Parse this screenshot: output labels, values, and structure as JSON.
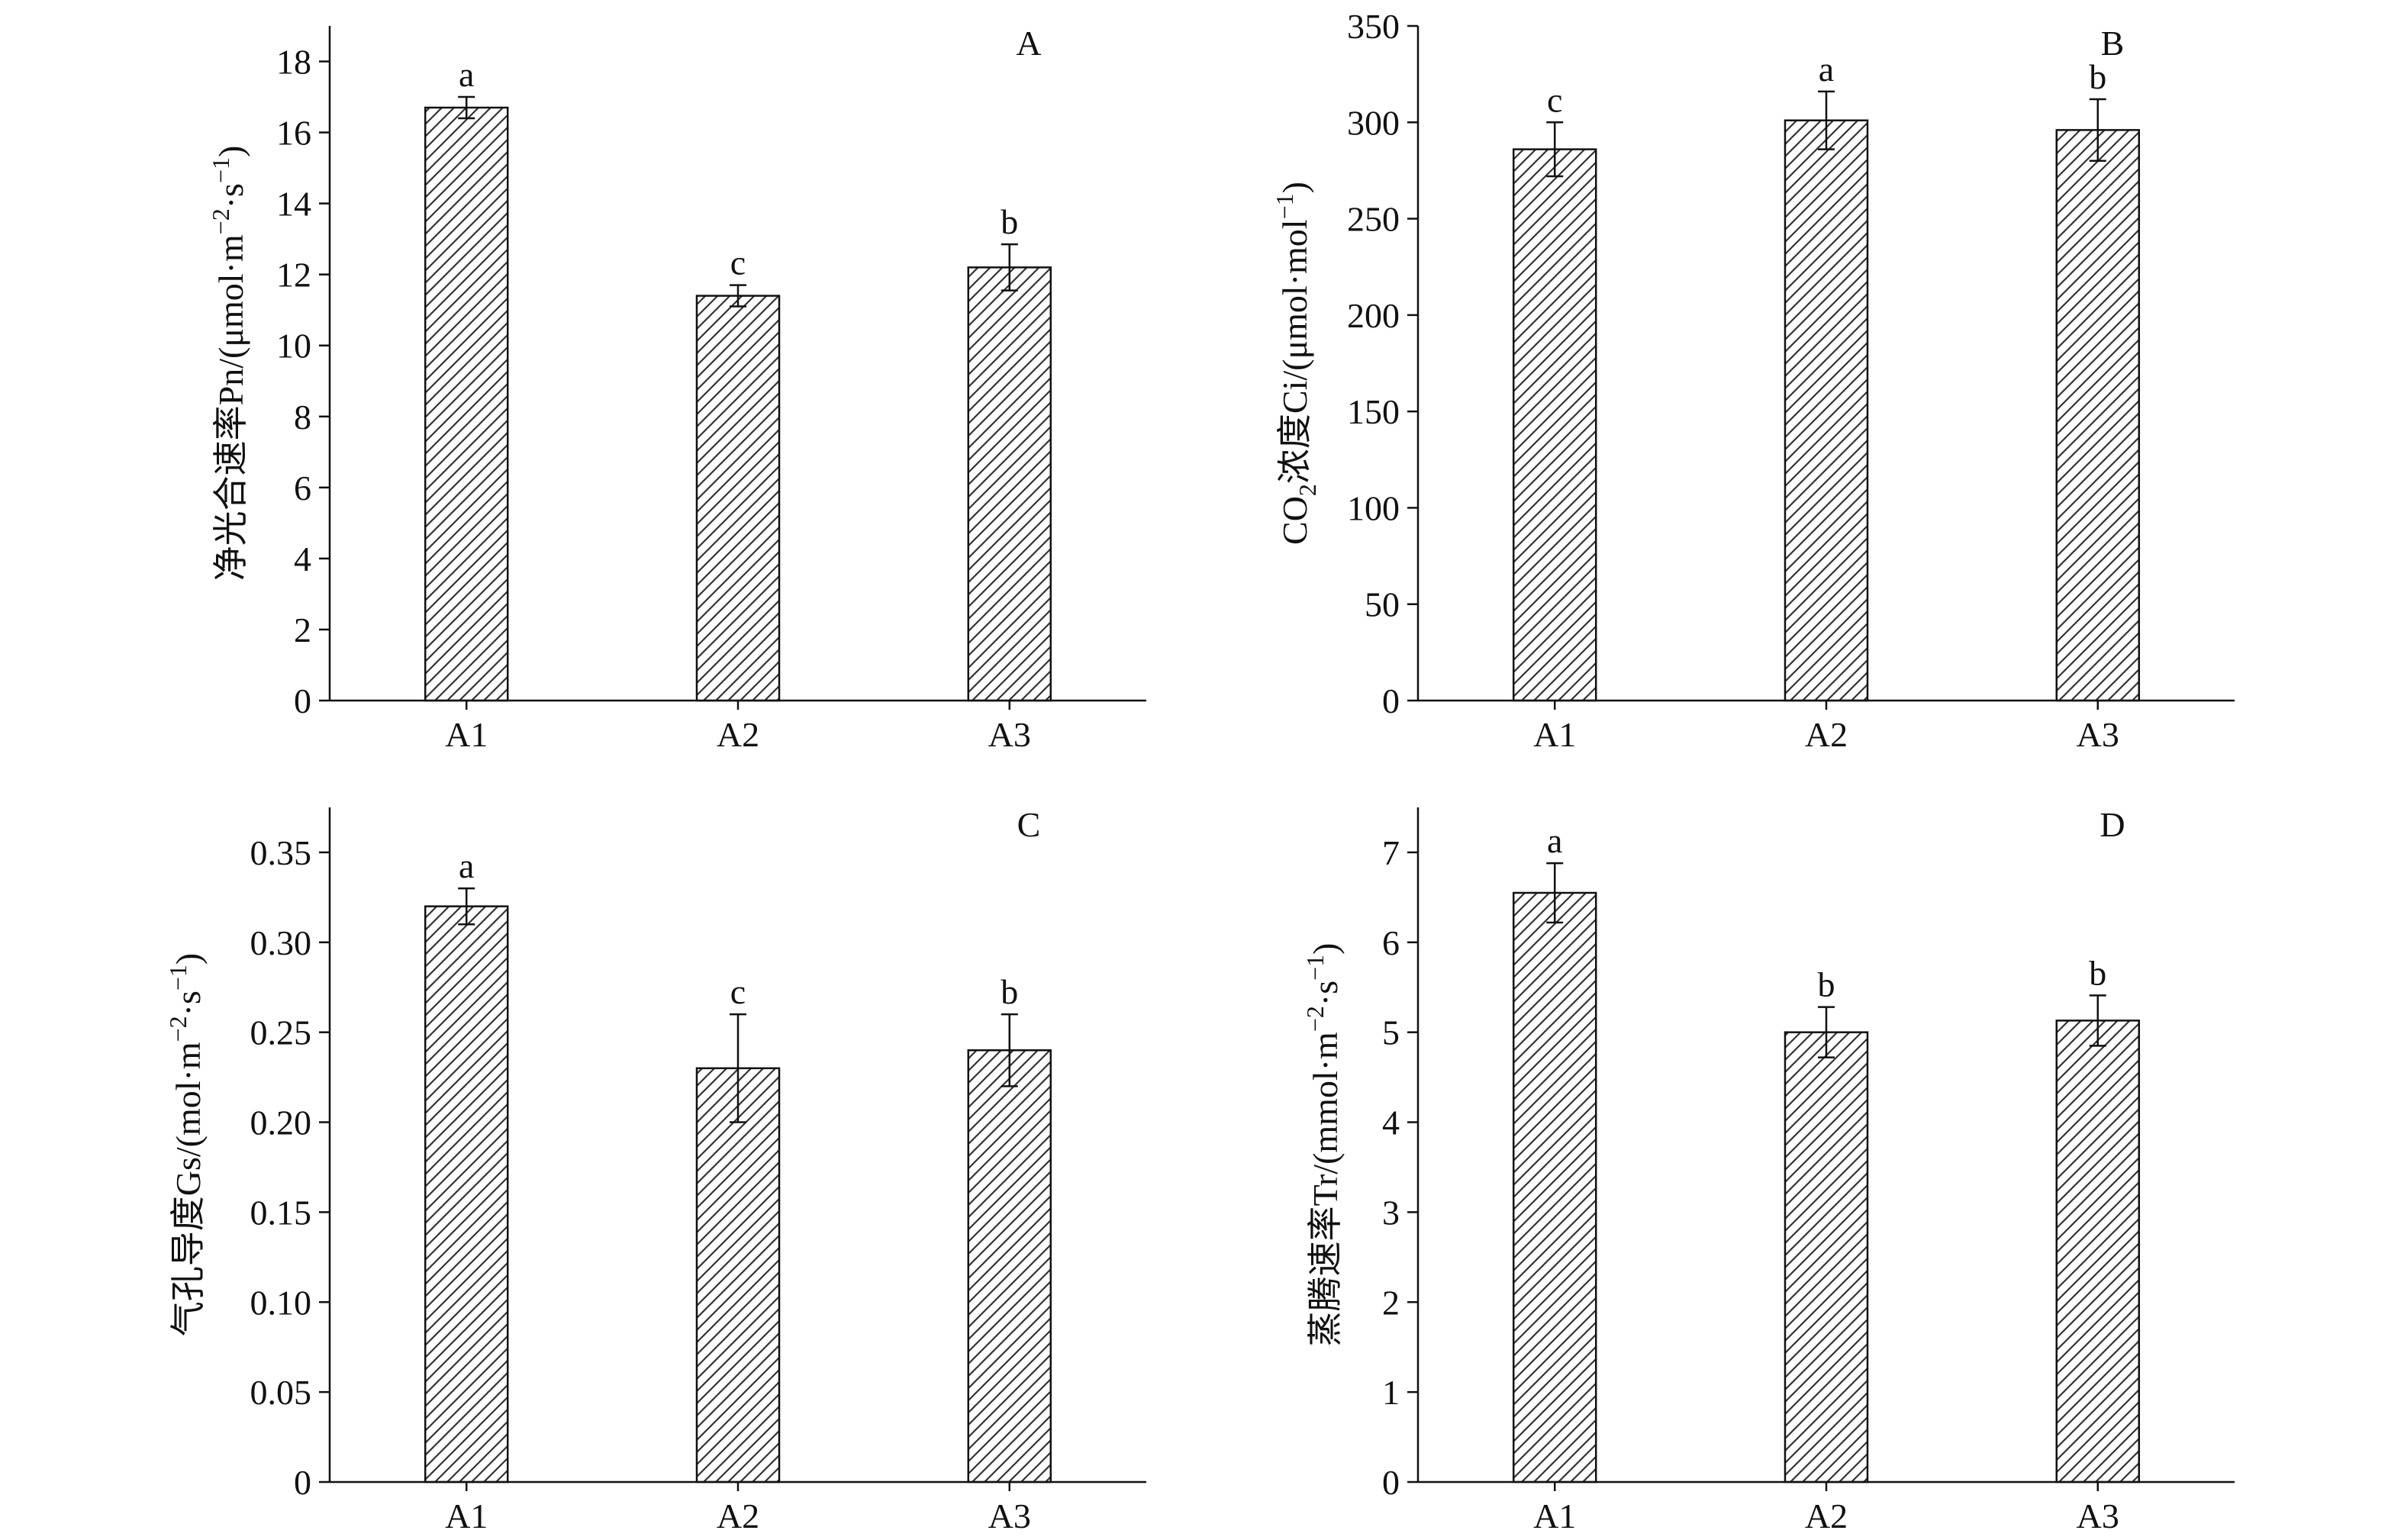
{
  "chart_data": [
    {
      "type": "bar",
      "panel": "A",
      "categories": [
        "A1",
        "A2",
        "A3"
      ],
      "values": [
        16.7,
        11.4,
        12.2
      ],
      "errors": [
        0.3,
        0.3,
        0.65
      ],
      "significance": [
        "a",
        "c",
        "b"
      ],
      "ylabel": {
        "main": "净光合速率Pn/(μmol·m",
        "sup1": "−2",
        "mid": "·s",
        "sup2": "−1",
        "end": ")"
      },
      "ylim": [
        0,
        19
      ],
      "yticks": [
        0,
        2,
        4,
        6,
        8,
        10,
        12,
        14,
        16,
        18
      ],
      "ytick_labels": [
        "0",
        "2",
        "4",
        "6",
        "8",
        "10",
        "12",
        "14",
        "16",
        "18"
      ]
    },
    {
      "type": "bar",
      "panel": "B",
      "categories": [
        "A1",
        "A2",
        "A3"
      ],
      "values": [
        286,
        301,
        296
      ],
      "errors": [
        14,
        15,
        16
      ],
      "significance": [
        "c",
        "a",
        "b"
      ],
      "ylabel": {
        "main": "CO",
        "sub": "2",
        "mid": "浓度Ci/(μmol·mol",
        "sup1": "−1",
        "end": ")"
      },
      "ylim": [
        0,
        350
      ],
      "yticks": [
        0,
        50,
        100,
        150,
        200,
        250,
        300,
        350
      ],
      "ytick_labels": [
        "0",
        "50",
        "100",
        "150",
        "200",
        "250",
        "300",
        "350"
      ]
    },
    {
      "type": "bar",
      "panel": "C",
      "categories": [
        "A1",
        "A2",
        "A3"
      ],
      "values": [
        0.32,
        0.23,
        0.24
      ],
      "errors": [
        0.01,
        0.03,
        0.02
      ],
      "significance": [
        "a",
        "c",
        "b"
      ],
      "ylabel": {
        "main": "气孔导度Gs/(mol·m",
        "sup1": "−2",
        "mid": "·s",
        "sup2": "−1",
        "end": ")"
      },
      "ylim": [
        0,
        0.375
      ],
      "yticks": [
        0,
        0.05,
        0.1,
        0.15,
        0.2,
        0.25,
        0.3,
        0.35
      ],
      "ytick_labels": [
        "0",
        "0.05",
        "0.10",
        "0.15",
        "0.20",
        "0.25",
        "0.30",
        "0.35"
      ]
    },
    {
      "type": "bar",
      "panel": "D",
      "categories": [
        "A1",
        "A2",
        "A3"
      ],
      "values": [
        6.55,
        5.0,
        5.13
      ],
      "errors": [
        0.33,
        0.28,
        0.28
      ],
      "significance": [
        "a",
        "b",
        "b"
      ],
      "ylabel": {
        "main": "蒸腾速率Tr/(mmol·m",
        "sup1": "−2",
        "mid": "·s",
        "sup2": "−1",
        "end": ")"
      },
      "ylim": [
        0,
        7.5
      ],
      "yticks": [
        0,
        1,
        2,
        3,
        4,
        5,
        6,
        7
      ],
      "ytick_labels": [
        "0",
        "1",
        "2",
        "3",
        "4",
        "5",
        "6",
        "7"
      ]
    }
  ],
  "colors": {
    "bar_edge": "#111111",
    "bar_fill": "#ffffff",
    "hatch": "#333333",
    "axis": "#111111"
  }
}
